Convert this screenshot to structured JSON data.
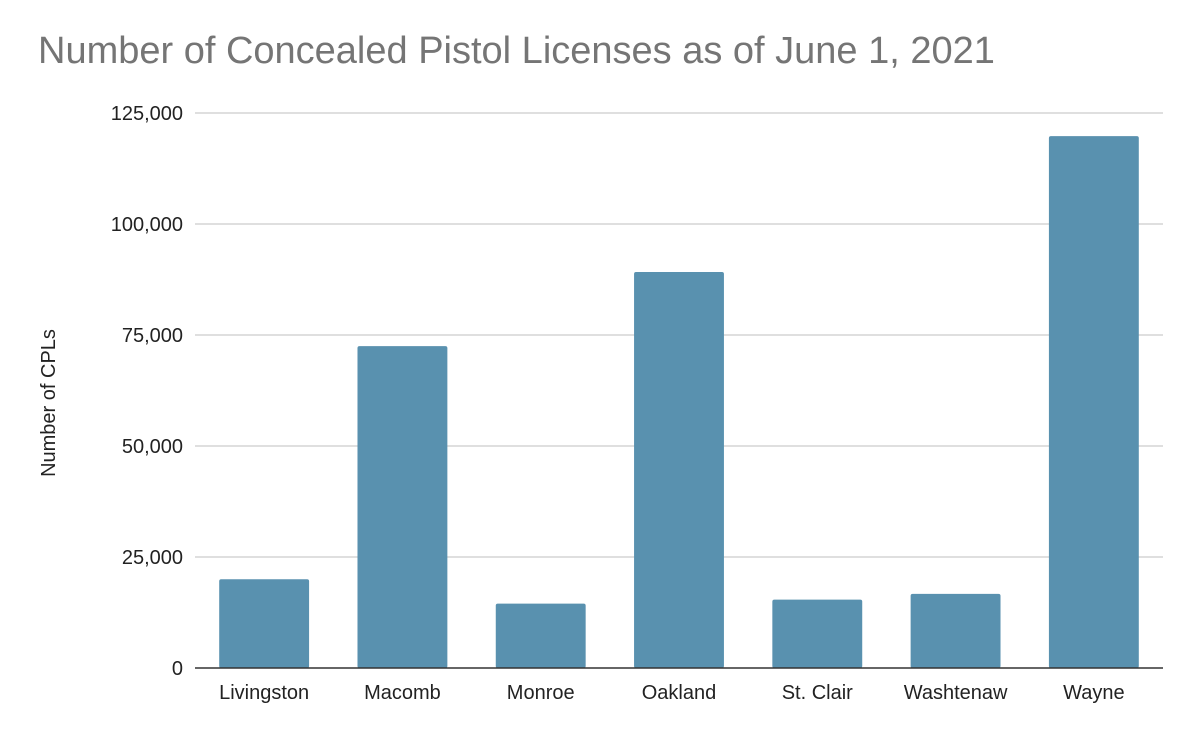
{
  "chart_data": {
    "type": "bar",
    "title": "Number of Concealed Pistol Licenses as of June 1, 2021",
    "xlabel": "",
    "ylabel": "Number of CPLs",
    "categories": [
      "Livingston",
      "Macomb",
      "Monroe",
      "Oakland",
      "St. Clair",
      "Washtenaw",
      "Wayne"
    ],
    "values": [
      20000,
      72500,
      14500,
      89200,
      15400,
      16700,
      119800
    ],
    "ylim": [
      0,
      125000
    ],
    "yticks": [
      0,
      25000,
      50000,
      75000,
      100000,
      125000
    ],
    "ytick_labels": [
      "0",
      "25,000",
      "50,000",
      "75,000",
      "100,000",
      "125,000"
    ],
    "grid": true,
    "legend": "none",
    "bar_color": "#5991af",
    "grid_color": "#cccccc",
    "axis_color": "#333333"
  }
}
